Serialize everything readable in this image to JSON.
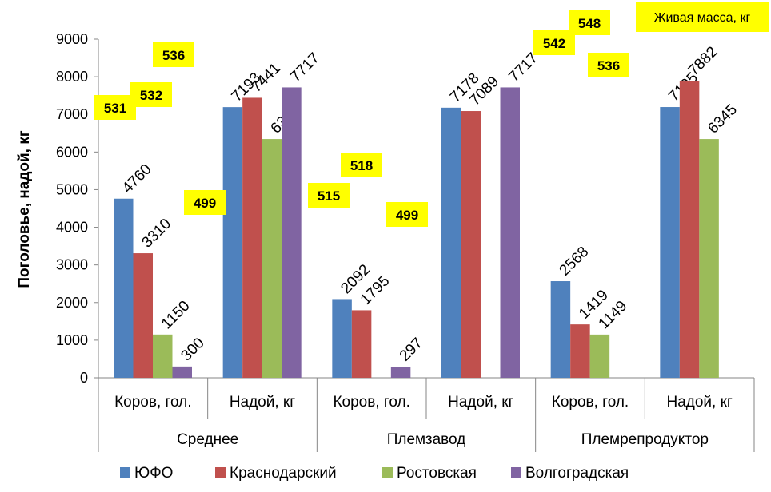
{
  "chart_data": {
    "type": "bar",
    "xlabel": "",
    "ylabel": "Поголовье, надой, кг",
    "ylim": [
      0,
      9000
    ],
    "yticks": [
      "0",
      "1000",
      "2000",
      "3000",
      "4000",
      "5000",
      "6000",
      "7000",
      "8000",
      "9000"
    ],
    "grid": false,
    "legend_position": "bottom",
    "groups": [
      "Среднее",
      "Племзавод",
      "Племрепродуктор"
    ],
    "categories": [
      "Коров, гол.",
      "Надой, кг",
      "Коров, гол.",
      "Надой, кг",
      "Коров, гол.",
      "Надой, кг"
    ],
    "series": [
      {
        "name": "ЮФО",
        "color": "#4f81bd",
        "values": [
          4760,
          7193,
          2092,
          7178,
          2568,
          7195
        ]
      },
      {
        "name": "Краснодарский",
        "color": "#c0504d",
        "values": [
          3310,
          7441,
          1795,
          7089,
          1419,
          7882
        ]
      },
      {
        "name": "Ростовская",
        "color": "#9bbb59",
        "values": [
          1150,
          6345,
          null,
          null,
          1149,
          6345
        ]
      },
      {
        "name": "Волгоградская",
        "color": "#8064a2",
        "values": [
          300,
          7717,
          297,
          7717,
          null,
          null
        ]
      }
    ],
    "annotation_title": "Живая масса, кг",
    "annotations": [
      "531",
      "532",
      "536",
      "499",
      "515",
      "518",
      "499",
      "542",
      "548",
      "536"
    ]
  }
}
